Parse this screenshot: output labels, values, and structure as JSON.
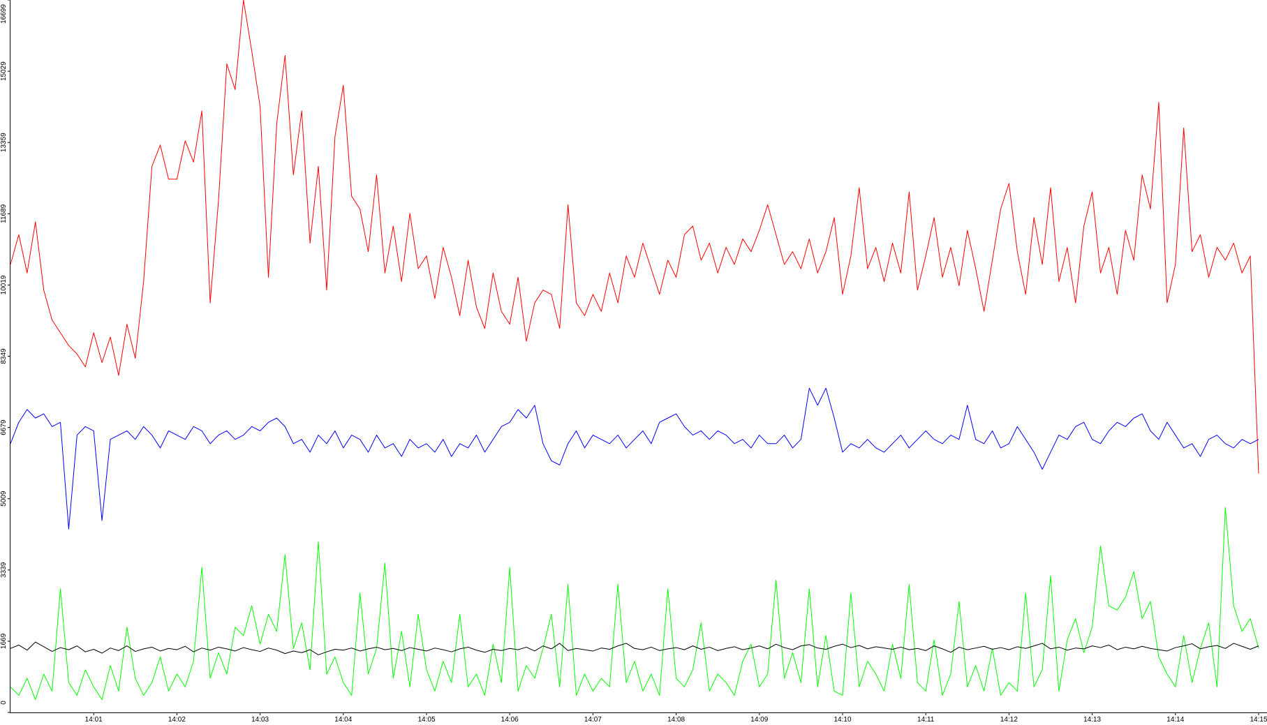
{
  "chart_data": {
    "type": "line",
    "x": [
      null,
      null,
      null,
      null,
      null,
      null,
      null,
      null,
      null,
      null,
      "14:01",
      null,
      null,
      null,
      null,
      null,
      null,
      null,
      null,
      null,
      "14:02",
      null,
      null,
      null,
      null,
      null,
      null,
      null,
      null,
      null,
      "14:03",
      null,
      null,
      null,
      null,
      null,
      null,
      null,
      null,
      null,
      "14:04",
      null,
      null,
      null,
      null,
      null,
      null,
      null,
      null,
      null,
      "14:05",
      null,
      null,
      null,
      null,
      null,
      null,
      null,
      null,
      null,
      "14:06",
      null,
      null,
      null,
      null,
      null,
      null,
      null,
      null,
      null,
      "14:07",
      null,
      null,
      null,
      null,
      null,
      null,
      null,
      null,
      null,
      "14:08",
      null,
      null,
      null,
      null,
      null,
      null,
      null,
      null,
      null,
      "14:09",
      null,
      null,
      null,
      null,
      null,
      null,
      null,
      null,
      null,
      "14:10",
      null,
      null,
      null,
      null,
      null,
      null,
      null,
      null,
      null,
      "14:11",
      null,
      null,
      null,
      null,
      null,
      null,
      null,
      null,
      null,
      "14:12",
      null,
      null,
      null,
      null,
      null,
      null,
      null,
      null,
      null,
      "14:13",
      null,
      null,
      null,
      null,
      null,
      null,
      null,
      null,
      null,
      "14:14",
      null,
      null,
      null,
      null,
      null,
      null,
      null,
      null,
      null,
      "14:15"
    ],
    "ylim": [
      0,
      16699
    ],
    "yticks": [
      0,
      1669,
      3339,
      5009,
      6679,
      8349,
      10019,
      11689,
      13359,
      15029,
      16699
    ],
    "grid": false,
    "series": [
      {
        "color": "#ff0000",
        "values": [
          10500,
          11200,
          10300,
          11500,
          9900,
          9200,
          8900,
          8600,
          8400,
          8100,
          8900,
          8200,
          8800,
          7900,
          9100,
          8300,
          10100,
          12800,
          13300,
          12500,
          12500,
          13400,
          12900,
          14100,
          9600,
          12000,
          15200,
          14600,
          16699,
          15500,
          14200,
          10200,
          13800,
          15400,
          12600,
          14100,
          11000,
          12800,
          9900,
          13500,
          14700,
          12100,
          11800,
          10800,
          12600,
          10300,
          11400,
          10100,
          11700,
          10400,
          10700,
          9700,
          10900,
          10200,
          9300,
          10600,
          9500,
          9000,
          10300,
          9400,
          9100,
          10200,
          8700,
          9600,
          9900,
          9800,
          9000,
          11900,
          9600,
          9300,
          9800,
          9400,
          10300,
          9600,
          10700,
          10200,
          11000,
          10400,
          9800,
          10600,
          10200,
          11200,
          11400,
          10600,
          11000,
          10300,
          10900,
          10500,
          11100,
          10800,
          11300,
          11900,
          11200,
          10500,
          10800,
          10400,
          11100,
          10300,
          10800,
          11600,
          9800,
          10700,
          12300,
          10400,
          10900,
          10100,
          11000,
          10300,
          12200,
          9900,
          10700,
          11600,
          10200,
          10900,
          10000,
          11300,
          10400,
          9400,
          10600,
          11800,
          12400,
          10800,
          9800,
          11600,
          10500,
          12300,
          10100,
          10900,
          9600,
          11400,
          12200,
          10300,
          10900,
          9800,
          11300,
          10600,
          12600,
          11800,
          14300,
          9600,
          10500,
          13700,
          10800,
          11200,
          10200,
          10900,
          10600,
          11000,
          10300,
          10700,
          5600
        ]
      },
      {
        "color": "#0000ff",
        "values": [
          6300,
          6800,
          7100,
          6900,
          7000,
          6700,
          6800,
          4300,
          6500,
          6700,
          6600,
          4500,
          6400,
          6500,
          6600,
          6400,
          6700,
          6500,
          6200,
          6600,
          6500,
          6400,
          6700,
          6600,
          6300,
          6500,
          6600,
          6400,
          6500,
          6700,
          6600,
          6800,
          6900,
          6700,
          6300,
          6400,
          6100,
          6500,
          6300,
          6600,
          6200,
          6500,
          6400,
          6100,
          6500,
          6200,
          6300,
          6000,
          6400,
          6200,
          6300,
          6100,
          6400,
          6000,
          6300,
          6200,
          6500,
          6100,
          6400,
          6700,
          6800,
          7100,
          6900,
          7200,
          6300,
          5900,
          5800,
          6300,
          6600,
          6200,
          6500,
          6400,
          6300,
          6500,
          6200,
          6400,
          6600,
          6300,
          6800,
          6900,
          7000,
          6700,
          6500,
          6600,
          6400,
          6600,
          6500,
          6300,
          6400,
          6200,
          6500,
          6300,
          6300,
          6500,
          6200,
          6400,
          7600,
          7200,
          7600,
          6900,
          6100,
          6300,
          6200,
          6400,
          6200,
          6100,
          6300,
          6500,
          6200,
          6400,
          6600,
          6400,
          6300,
          6500,
          6400,
          7200,
          6400,
          6300,
          6600,
          6200,
          6300,
          6700,
          6400,
          6100,
          5700,
          6100,
          6500,
          6400,
          6700,
          6800,
          6400,
          6300,
          6600,
          6800,
          6700,
          6900,
          7000,
          6600,
          6400,
          6800,
          6500,
          6200,
          6300,
          6000,
          6400,
          6500,
          6300,
          6200,
          6400,
          6300,
          6400
        ]
      },
      {
        "color": "#00ff00",
        "values": [
          600,
          400,
          800,
          300,
          900,
          500,
          2900,
          700,
          400,
          1000,
          600,
          300,
          1100,
          500,
          2000,
          800,
          400,
          700,
          1300,
          500,
          900,
          600,
          1200,
          3400,
          800,
          1400,
          900,
          2000,
          1800,
          2500,
          1600,
          2300,
          1900,
          3700,
          1500,
          2100,
          1000,
          4000,
          900,
          1300,
          700,
          400,
          2800,
          900,
          1500,
          3500,
          800,
          1900,
          600,
          2300,
          1000,
          500,
          1200,
          700,
          2300,
          600,
          900,
          400,
          1600,
          700,
          3400,
          500,
          1100,
          800,
          1500,
          2300,
          600,
          3000,
          400,
          900,
          500,
          800,
          600,
          3000,
          700,
          1200,
          500,
          900,
          400,
          2900,
          800,
          600,
          1000,
          2100,
          500,
          900,
          700,
          400,
          1200,
          1600,
          600,
          900,
          3100,
          800,
          1400,
          700,
          2900,
          600,
          1800,
          500,
          400,
          2800,
          600,
          1200,
          900,
          500,
          1600,
          800,
          3000,
          700,
          500,
          1700,
          400,
          900,
          2600,
          600,
          1100,
          500,
          1500,
          400,
          700,
          500,
          2800,
          600,
          1000,
          3200,
          500,
          1700,
          2200,
          1400,
          2000,
          3900,
          2500,
          2400,
          2700,
          3300,
          2200,
          2600,
          1300,
          900,
          600,
          1800,
          700,
          1500,
          2100,
          600,
          4800,
          2500,
          1900,
          2200,
          1500
        ]
      },
      {
        "color": "#000000",
        "values": [
          1500,
          1580,
          1460,
          1650,
          1540,
          1430,
          1520,
          1470,
          1560,
          1420,
          1480,
          1390,
          1510,
          1450,
          1560,
          1430,
          1490,
          1530,
          1440,
          1500,
          1470,
          1550,
          1420,
          1510,
          1460,
          1530,
          1490,
          1440,
          1520,
          1470,
          1430,
          1510,
          1460,
          1380,
          1440,
          1400,
          1470,
          1350,
          1420,
          1480,
          1460,
          1510,
          1440,
          1490,
          1530,
          1470,
          1500,
          1450,
          1520,
          1480,
          1440,
          1510,
          1470,
          1420,
          1490,
          1530,
          1460,
          1410,
          1480,
          1450,
          1500,
          1470,
          1530,
          1440,
          1560,
          1490,
          1620,
          1450,
          1500,
          1470,
          1440,
          1510,
          1480,
          1560,
          1620,
          1500,
          1470,
          1530,
          1450,
          1490,
          1520,
          1470,
          1560,
          1480,
          1530,
          1450,
          1500,
          1540,
          1470,
          1510,
          1560,
          1490,
          1600,
          1520,
          1470,
          1560,
          1590,
          1510,
          1480,
          1550,
          1600,
          1520,
          1570,
          1490,
          1540,
          1510,
          1480,
          1530,
          1470,
          1500,
          1450,
          1560,
          1490,
          1410,
          1530,
          1470,
          1510,
          1550,
          1480,
          1520,
          1470,
          1540,
          1500,
          1560,
          1620,
          1490,
          1530,
          1460,
          1510,
          1490,
          1560,
          1520,
          1580,
          1470,
          1530,
          1490,
          1550,
          1500,
          1470,
          1440,
          1520,
          1560,
          1610,
          1490,
          1540,
          1570,
          1500,
          1620,
          1550,
          1480,
          1560
        ]
      }
    ]
  }
}
